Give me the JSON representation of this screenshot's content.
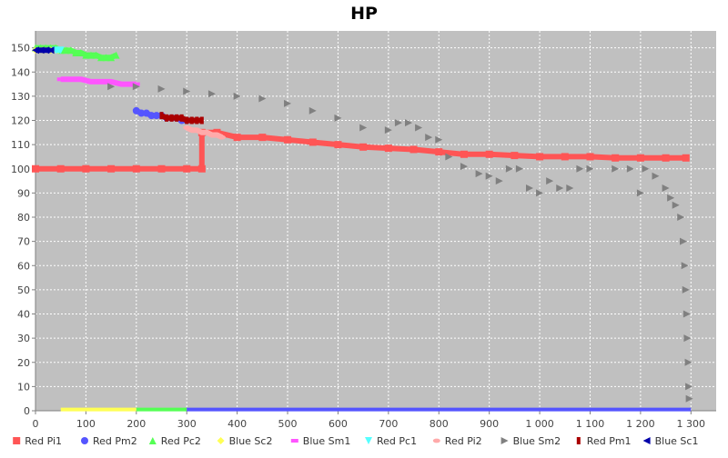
{
  "chart_data": {
    "type": "scatter",
    "title": "HP",
    "xlabel": "",
    "ylabel": "",
    "xlim": [
      0,
      1350
    ],
    "ylim": [
      0,
      157
    ],
    "x_ticks": [
      0,
      100,
      200,
      300,
      400,
      500,
      600,
      700,
      800,
      900,
      1000,
      1100,
      1200,
      1300
    ],
    "x_tick_labels": [
      "0",
      "100",
      "200",
      "300",
      "400",
      "500",
      "600",
      "700",
      "800",
      "900",
      "1 000",
      "1 100",
      "1 200",
      "1 300"
    ],
    "y_ticks": [
      0,
      10,
      20,
      30,
      40,
      50,
      60,
      70,
      80,
      90,
      100,
      110,
      120,
      130,
      140,
      150
    ],
    "y_tick_labels": [
      "0",
      "10",
      "20",
      "30",
      "40",
      "50",
      "60",
      "70",
      "80",
      "90",
      "100",
      "110",
      "120",
      "130",
      "140",
      "150"
    ],
    "grid": true,
    "legend_position": "bottom",
    "series": [
      {
        "name": "Red Pi1",
        "color": "#ff5555",
        "marker": "square",
        "points": [
          [
            0,
            100
          ],
          [
            50,
            100
          ],
          [
            100,
            100
          ],
          [
            150,
            100
          ],
          [
            200,
            100
          ],
          [
            250,
            100
          ],
          [
            300,
            100
          ],
          [
            330,
            100
          ],
          [
            330,
            115
          ],
          [
            360,
            115
          ],
          [
            400,
            113
          ],
          [
            450,
            113
          ],
          [
            500,
            112
          ],
          [
            550,
            111
          ],
          [
            600,
            110
          ],
          [
            650,
            109
          ],
          [
            700,
            108.5
          ],
          [
            750,
            108
          ],
          [
            800,
            107
          ],
          [
            850,
            106
          ],
          [
            900,
            106
          ],
          [
            950,
            105.5
          ],
          [
            1000,
            105
          ],
          [
            1050,
            105
          ],
          [
            1100,
            105
          ],
          [
            1150,
            104.5
          ],
          [
            1200,
            104.5
          ],
          [
            1250,
            104.5
          ],
          [
            1290,
            104.5
          ]
        ]
      },
      {
        "name": "Red Pm2",
        "color": "#5555ff",
        "marker": "circle",
        "points": [
          [
            200,
            124
          ],
          [
            210,
            123
          ],
          [
            220,
            123
          ],
          [
            230,
            122
          ],
          [
            240,
            122
          ],
          [
            250,
            122
          ],
          [
            260,
            121
          ],
          [
            270,
            121
          ],
          [
            280,
            121
          ],
          [
            290,
            120
          ],
          [
            300,
            120
          ]
        ]
      },
      {
        "name": "Red Pc2",
        "color": "#55ff55",
        "marker": "triangle-up",
        "points": [
          [
            0,
            150
          ],
          [
            10,
            150
          ],
          [
            20,
            150
          ],
          [
            30,
            150
          ],
          [
            40,
            150
          ],
          [
            50,
            149
          ],
          [
            60,
            149
          ],
          [
            70,
            149
          ],
          [
            80,
            148
          ],
          [
            90,
            148
          ],
          [
            100,
            147
          ],
          [
            110,
            147
          ],
          [
            120,
            147
          ],
          [
            130,
            146
          ],
          [
            140,
            146
          ],
          [
            150,
            146
          ],
          [
            160,
            147
          ]
        ]
      },
      {
        "name": "Blue Sc2",
        "color": "#ffff55",
        "marker": "diamond",
        "points": [
          [
            0,
            149
          ],
          [
            15,
            149
          ],
          [
            30,
            149
          ],
          [
            45,
            149
          ]
        ]
      },
      {
        "name": "Blue Sm1",
        "color": "#ff55ff",
        "marker": "rect-horizontal",
        "points": [
          [
            50,
            137
          ],
          [
            70,
            137
          ],
          [
            90,
            137
          ],
          [
            110,
            136
          ],
          [
            130,
            136
          ],
          [
            150,
            136
          ],
          [
            170,
            135
          ],
          [
            190,
            135
          ],
          [
            200,
            135
          ]
        ]
      },
      {
        "name": "Red Pc1",
        "color": "#55ffff",
        "marker": "triangle-down",
        "points": [
          [
            40,
            149
          ],
          [
            50,
            149
          ]
        ]
      },
      {
        "name": "Red Pi2",
        "color": "#ffaaaa",
        "marker": "ellipse",
        "points": [
          [
            300,
            117
          ],
          [
            310,
            116
          ],
          [
            320,
            116
          ],
          [
            330,
            115
          ],
          [
            340,
            115
          ],
          [
            350,
            114
          ],
          [
            360,
            114
          ],
          [
            370,
            113
          ]
        ]
      },
      {
        "name": "Blue Sm2",
        "color": "#808080",
        "marker": "triangle-right",
        "points": [
          [
            150,
            134
          ],
          [
            200,
            134
          ],
          [
            250,
            133
          ],
          [
            300,
            132
          ],
          [
            350,
            131
          ],
          [
            400,
            130
          ],
          [
            450,
            129
          ],
          [
            500,
            127
          ],
          [
            550,
            124
          ],
          [
            600,
            121
          ],
          [
            650,
            117
          ],
          [
            700,
            116
          ],
          [
            720,
            119
          ],
          [
            740,
            119
          ],
          [
            760,
            117
          ],
          [
            780,
            113
          ],
          [
            800,
            112
          ],
          [
            820,
            105
          ],
          [
            850,
            101
          ],
          [
            880,
            98
          ],
          [
            900,
            97
          ],
          [
            920,
            95
          ],
          [
            940,
            100
          ],
          [
            960,
            100
          ],
          [
            980,
            92
          ],
          [
            1000,
            90
          ],
          [
            1020,
            95
          ],
          [
            1040,
            92
          ],
          [
            1060,
            92
          ],
          [
            1080,
            100
          ],
          [
            1100,
            100
          ],
          [
            1150,
            100
          ],
          [
            1180,
            100
          ],
          [
            1200,
            90
          ],
          [
            1210,
            100
          ],
          [
            1230,
            97
          ],
          [
            1250,
            92
          ],
          [
            1260,
            88
          ],
          [
            1270,
            85
          ],
          [
            1280,
            80
          ],
          [
            1285,
            70
          ],
          [
            1288,
            60
          ],
          [
            1290,
            50
          ],
          [
            1292,
            40
          ],
          [
            1293,
            30
          ],
          [
            1295,
            20
          ],
          [
            1296,
            10
          ],
          [
            1297,
            5
          ]
        ]
      },
      {
        "name": "Red Pm1",
        "color": "#aa0000",
        "marker": "rect-vertical",
        "points": [
          [
            250,
            122
          ],
          [
            260,
            121
          ],
          [
            270,
            121
          ],
          [
            280,
            121
          ],
          [
            290,
            121
          ],
          [
            300,
            120
          ],
          [
            310,
            120
          ],
          [
            320,
            120
          ],
          [
            330,
            120
          ]
        ]
      },
      {
        "name": "Blue Sc1",
        "color": "#0000aa",
        "marker": "triangle-left",
        "points": [
          [
            0,
            149
          ],
          [
            10,
            149
          ],
          [
            20,
            149
          ],
          [
            30,
            149
          ]
        ]
      }
    ],
    "bottom_lines": [
      {
        "series": "Blue Sc2",
        "color": "#ffff55",
        "x": [
          50,
          200
        ],
        "y": 0.5
      },
      {
        "series": "Red Pc2",
        "color": "#55ff55",
        "x": [
          200,
          300
        ],
        "y": 0.5
      },
      {
        "series": "Red Pm2",
        "color": "#5555ff",
        "x": [
          300,
          1300
        ],
        "y": 0.5
      }
    ]
  }
}
